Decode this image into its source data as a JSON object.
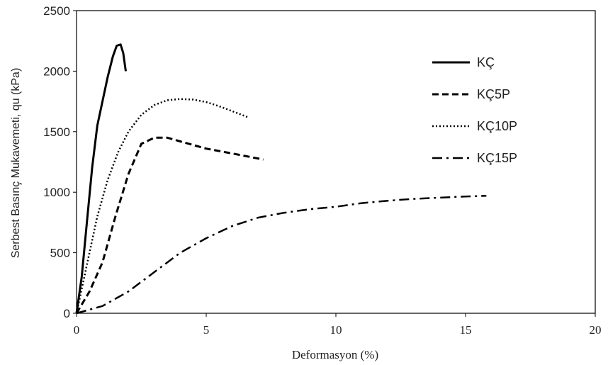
{
  "chart_data": {
    "type": "line",
    "title": "",
    "xlabel": "Deformasyon (%)",
    "ylabel": "Serbest Basınç Mukavemeti, qu (kPa)",
    "xlim": [
      0,
      20
    ],
    "ylim": [
      0,
      2500
    ],
    "xticks": [
      0,
      5,
      10,
      15,
      20
    ],
    "yticks": [
      0,
      500,
      1000,
      1500,
      2000,
      2500
    ],
    "grid": false,
    "legend_position": "top-right",
    "series": [
      {
        "name": "KÇ",
        "style": "solid",
        "x": [
          0,
          0.2,
          0.4,
          0.6,
          0.8,
          1.0,
          1.2,
          1.4,
          1.55,
          1.7,
          1.8,
          1.9
        ],
        "y": [
          0,
          300,
          750,
          1200,
          1550,
          1750,
          1950,
          2120,
          2210,
          2220,
          2150,
          2000
        ]
      },
      {
        "name": "KÇ5P",
        "style": "dashed",
        "x": [
          0,
          0.5,
          1.0,
          1.5,
          2.0,
          2.5,
          3.0,
          3.5,
          4.0,
          5.0,
          6.0,
          7.2
        ],
        "y": [
          0,
          180,
          420,
          800,
          1150,
          1400,
          1450,
          1450,
          1420,
          1360,
          1320,
          1270
        ]
      },
      {
        "name": "KÇ10P",
        "style": "dotted",
        "x": [
          0,
          0.4,
          0.8,
          1.2,
          1.6,
          2.0,
          2.5,
          3.0,
          3.5,
          4.0,
          4.5,
          5.0,
          5.5,
          6.0,
          6.6
        ],
        "y": [
          0,
          400,
          800,
          1100,
          1330,
          1500,
          1640,
          1720,
          1760,
          1770,
          1765,
          1745,
          1710,
          1670,
          1620
        ]
      },
      {
        "name": "KÇ15P",
        "style": "dash-dot",
        "x": [
          0,
          1,
          2,
          3,
          4,
          5,
          6,
          7,
          8,
          9,
          10,
          11,
          12,
          13,
          14,
          15,
          15.8
        ],
        "y": [
          0,
          60,
          180,
          340,
          500,
          620,
          720,
          790,
          830,
          860,
          880,
          910,
          930,
          945,
          955,
          965,
          970
        ]
      }
    ]
  }
}
